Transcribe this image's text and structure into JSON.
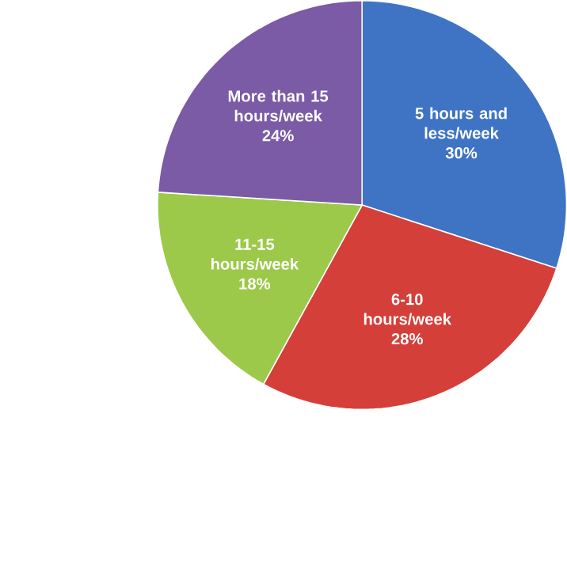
{
  "chart_data": {
    "type": "pie",
    "categories": [
      "5 hours and less/week",
      "6-10 hours/week",
      "11-15 hours/week",
      "More than 15 hours/week"
    ],
    "values": [
      30,
      28,
      18,
      24
    ],
    "value_labels": [
      "30%",
      "28%",
      "18%",
      "24%"
    ],
    "colors": [
      "#3f74c4",
      "#d43f3a",
      "#9cc94a",
      "#7b5ba6"
    ]
  }
}
